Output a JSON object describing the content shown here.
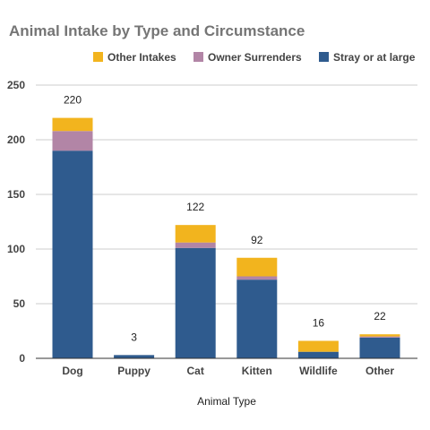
{
  "chart_data": {
    "type": "bar",
    "stacked": true,
    "title": "Animal Intake by Type and Circumstance",
    "xlabel": "Animal Type",
    "ylabel": "",
    "categories": [
      "Dog",
      "Puppy",
      "Cat",
      "Kitten",
      "Wildlife",
      "Other"
    ],
    "series": [
      {
        "name": "Stray or at large",
        "color": "#2f5b8e",
        "values": [
          190,
          3,
          101,
          72,
          6,
          19
        ]
      },
      {
        "name": "Owner Surrenders",
        "color": "#b285a6",
        "values": [
          18,
          0,
          5,
          3,
          0,
          1
        ]
      },
      {
        "name": "Other Intakes",
        "color": "#f2b41e",
        "values": [
          12,
          0,
          16,
          17,
          10,
          2
        ]
      }
    ],
    "totals": [
      "220",
      "3",
      "122",
      "92",
      "16",
      "22"
    ],
    "ylim": [
      0,
      250
    ],
    "yticks": [
      "0",
      "50",
      "100",
      "150",
      "200",
      "250"
    ],
    "legend_order": [
      "Other Intakes",
      "Owner Surrenders",
      "Stray or at large"
    ],
    "legend_position": "top-right",
    "grid": true
  }
}
